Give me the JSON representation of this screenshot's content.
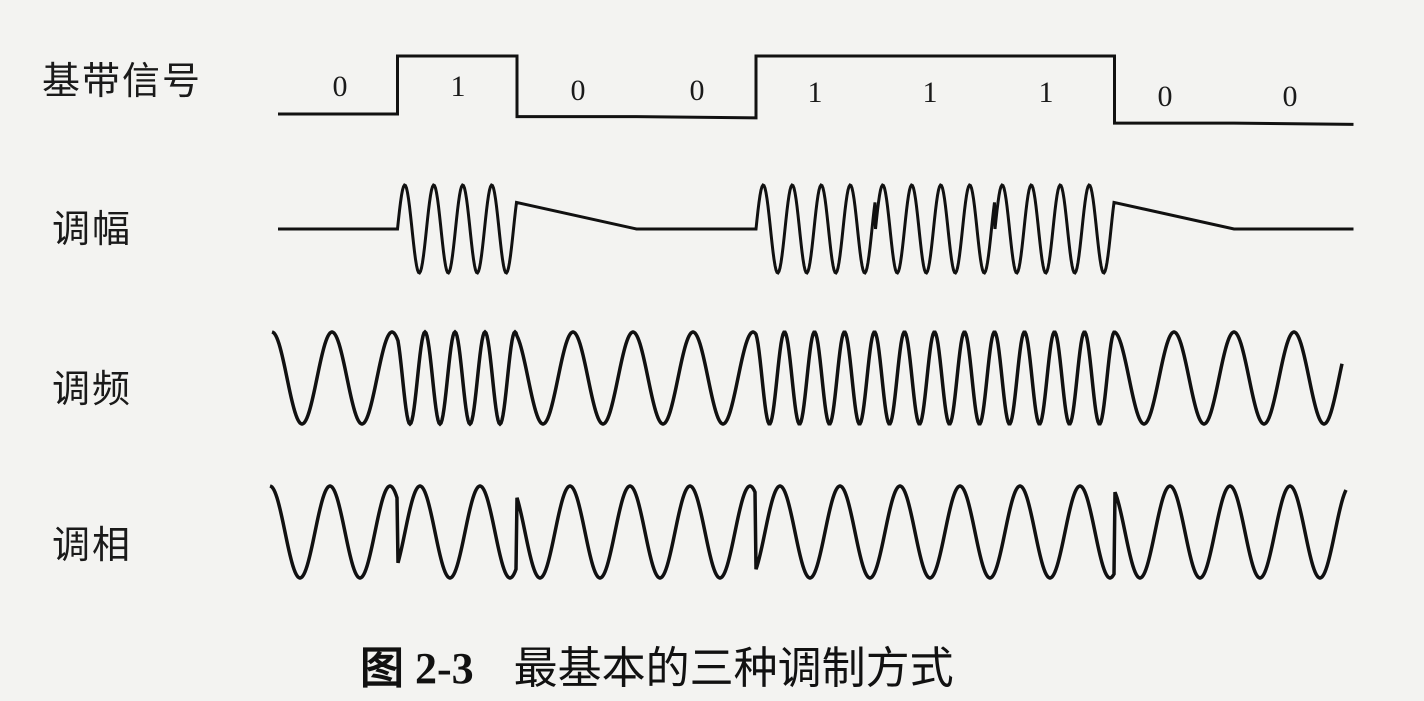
{
  "labels": {
    "baseband": "基带信号",
    "am": "调幅",
    "fm": "调频",
    "pm": "调相"
  },
  "bits": [
    "0",
    "1",
    "0",
    "0",
    "1",
    "1",
    "1",
    "0",
    "0"
  ],
  "caption": {
    "number": "图 2-3",
    "text": "最基本的三种调制方式"
  },
  "colors": {
    "ink": "#111111",
    "paper": "#f3f3f1"
  }
}
